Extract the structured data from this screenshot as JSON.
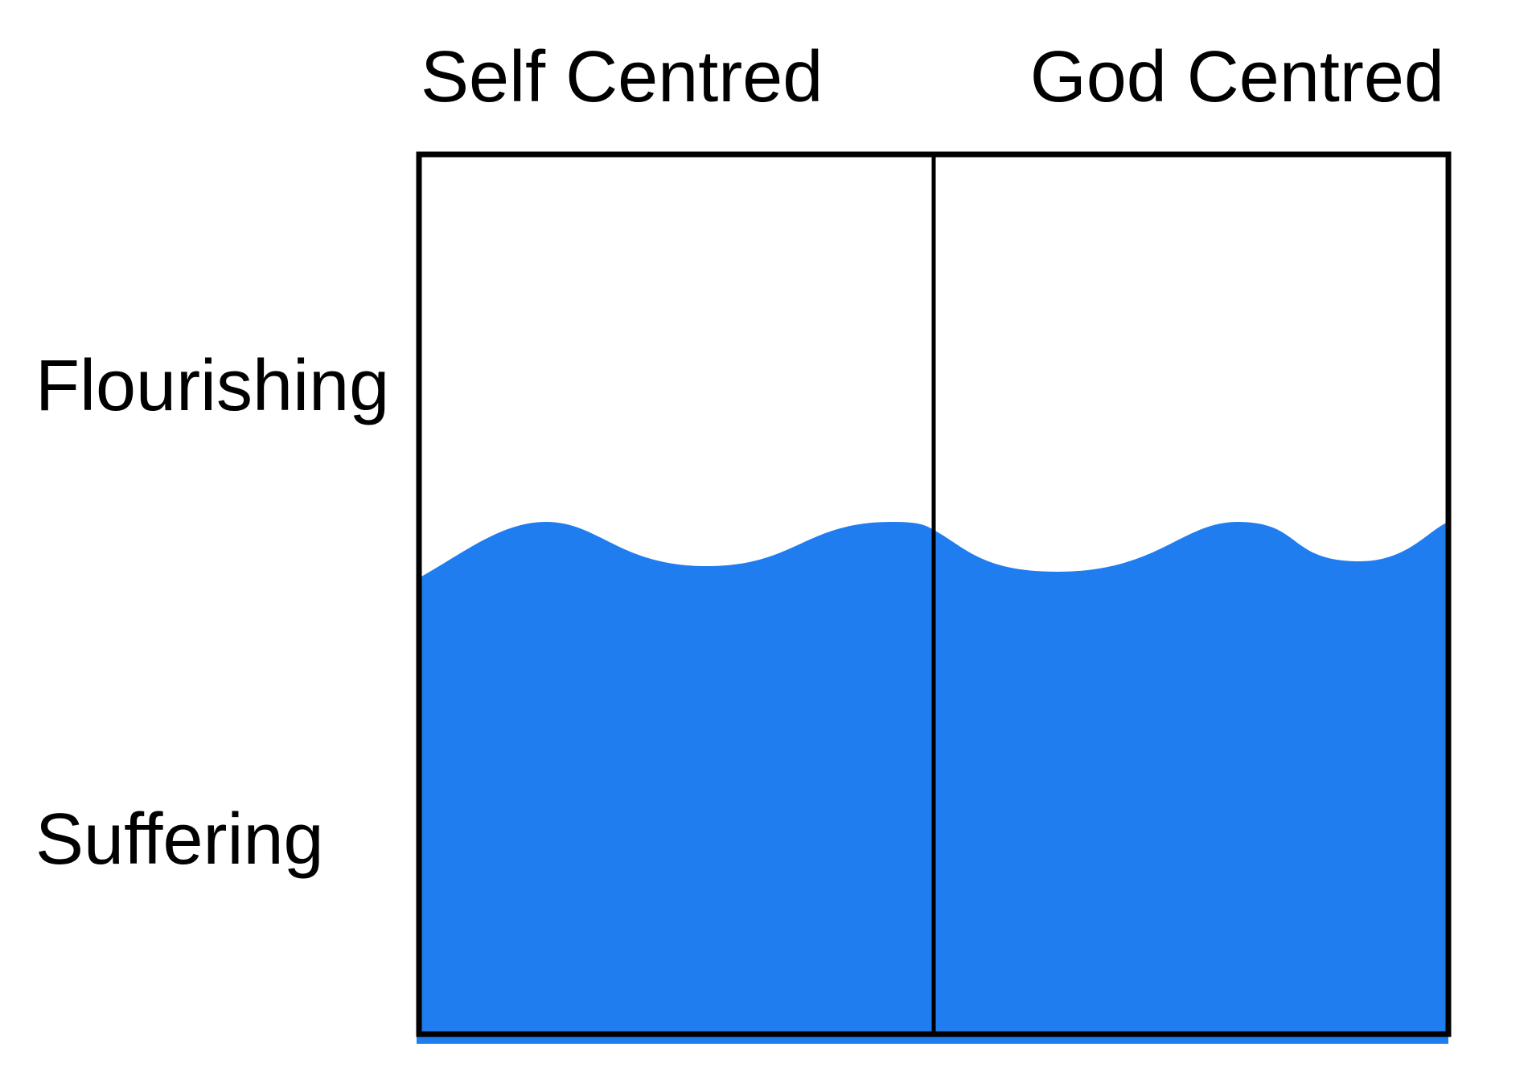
{
  "columns": [
    "Self Centred",
    "God Centred"
  ],
  "rows": [
    "Flourishing",
    "Suffering"
  ]
}
